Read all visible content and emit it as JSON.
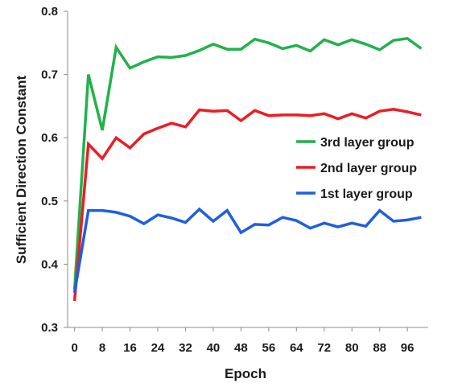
{
  "chart_data": {
    "type": "line",
    "xlabel": "Epoch",
    "ylabel": "Sufficient Direction Constant",
    "xlim": [
      -2,
      102
    ],
    "ylim": [
      0.3,
      0.8
    ],
    "xticks": [
      0,
      8,
      16,
      24,
      32,
      40,
      48,
      56,
      64,
      72,
      80,
      88,
      96
    ],
    "yticks": [
      0.3,
      0.4,
      0.5,
      0.6,
      0.7,
      0.8
    ],
    "ytick_labels": [
      "0.3",
      "0.4",
      "0.5",
      "0.6",
      "0.7",
      "0.8"
    ],
    "grid": false,
    "legend_position": "right",
    "x": [
      0,
      4,
      8,
      12,
      16,
      20,
      24,
      28,
      32,
      36,
      40,
      44,
      48,
      52,
      56,
      60,
      64,
      68,
      72,
      76,
      80,
      84,
      88,
      92,
      96,
      100
    ],
    "series": [
      {
        "name": "3rd layer group",
        "color": "#22b14c",
        "values": [
          0.36,
          0.7,
          0.612,
          0.743,
          0.71,
          0.72,
          0.728,
          0.727,
          0.73,
          0.738,
          0.748,
          0.74,
          0.74,
          0.756,
          0.75,
          0.741,
          0.746,
          0.737,
          0.755,
          0.747,
          0.755,
          0.748,
          0.739,
          0.754,
          0.757,
          0.741
        ]
      },
      {
        "name": "2nd layer group",
        "color": "#ed1c24",
        "values": [
          0.342,
          0.59,
          0.567,
          0.6,
          0.584,
          0.606,
          0.615,
          0.623,
          0.617,
          0.644,
          0.642,
          0.643,
          0.627,
          0.643,
          0.635,
          0.636,
          0.636,
          0.635,
          0.638,
          0.63,
          0.638,
          0.631,
          0.642,
          0.645,
          0.641,
          0.636
        ]
      },
      {
        "name": "1st layer group",
        "color": "#1f5fe0",
        "values": [
          0.355,
          0.485,
          0.485,
          0.482,
          0.476,
          0.464,
          0.478,
          0.473,
          0.466,
          0.487,
          0.468,
          0.485,
          0.45,
          0.463,
          0.462,
          0.474,
          0.469,
          0.457,
          0.465,
          0.459,
          0.465,
          0.46,
          0.485,
          0.468,
          0.47,
          0.474
        ]
      }
    ]
  }
}
